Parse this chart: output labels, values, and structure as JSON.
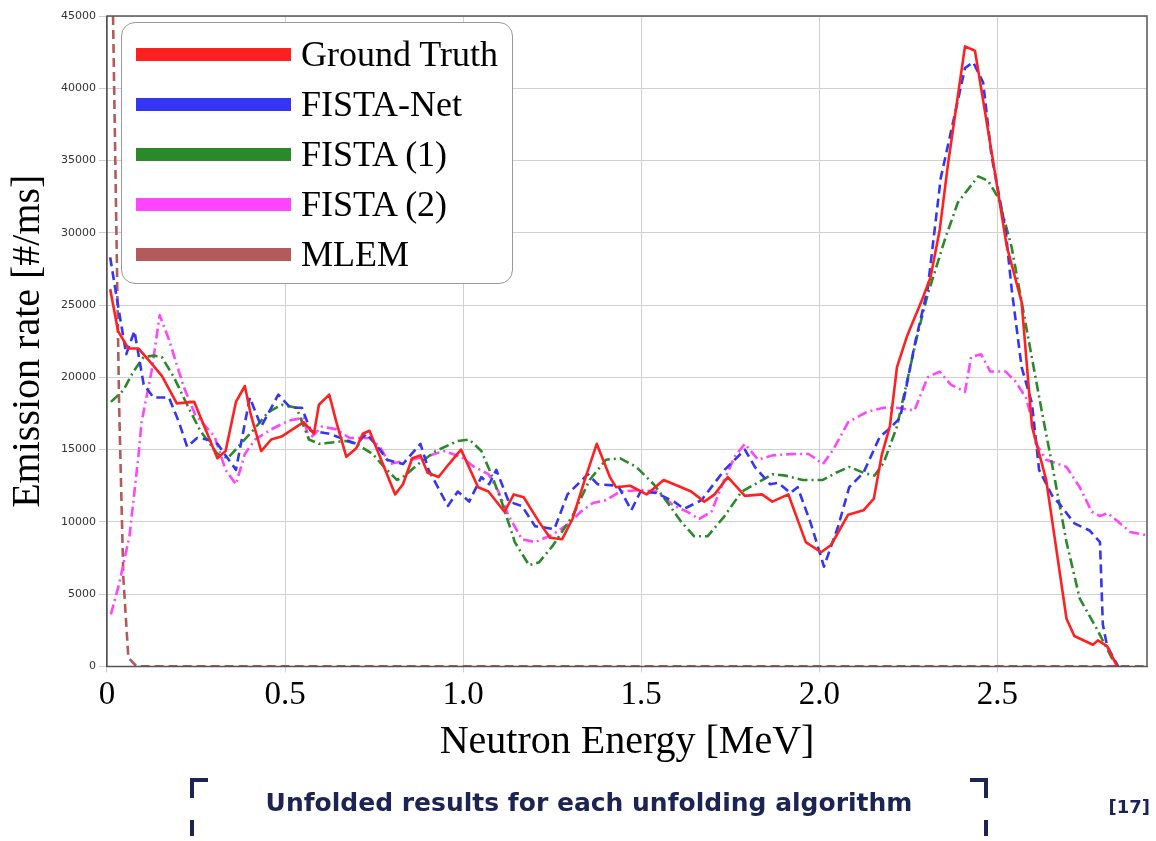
{
  "chart_data": {
    "type": "line",
    "xlabel": "Neutron Energy [MeV]",
    "ylabel": "Emission rate [#/ms]",
    "xlim": [
      0,
      2.92
    ],
    "xticks": [
      0,
      0.5,
      {
        "value": 1,
        "label": "1.0"
      },
      1.5,
      {
        "value": 2,
        "label": "2.0"
      },
      2.5
    ],
    "ylim": [
      0,
      45000
    ],
    "yticks": [
      0,
      5000,
      10000,
      15000,
      20000,
      25000,
      30000,
      35000,
      40000,
      45000
    ],
    "grid": true,
    "legend": "top left",
    "marker": "none",
    "annotations": [
      "Unfolded results for each unfolding algorithm",
      "[17]"
    ],
    "series": [
      {
        "name": "Ground Truth",
        "color": "#ff2020",
        "line_style": "solid",
        "x": [
          0.009,
          0.031,
          0.06,
          0.088,
          0.12,
          0.154,
          0.196,
          0.245,
          0.31,
          0.333,
          0.362,
          0.387,
          0.404,
          0.433,
          0.461,
          0.49,
          0.552,
          0.581,
          0.595,
          0.624,
          0.644,
          0.672,
          0.7,
          0.718,
          0.737,
          0.809,
          0.831,
          0.857,
          0.88,
          0.9,
          0.931,
          0.96,
          0.994,
          1.042,
          1.071,
          1.116,
          1.142,
          1.17,
          1.213,
          1.244,
          1.278,
          1.307,
          1.344,
          1.375,
          1.412,
          1.429,
          1.469,
          1.515,
          1.563,
          1.612,
          1.64,
          1.677,
          1.706,
          1.743,
          1.791,
          1.839,
          1.868,
          1.913,
          1.962,
          2.005,
          2.033,
          2.081,
          2.124,
          2.153,
          2.175,
          2.198,
          2.218,
          2.247,
          2.289,
          2.312,
          2.338,
          2.361,
          2.409,
          2.437,
          2.483,
          2.526,
          2.568,
          2.597,
          2.637,
          2.694,
          2.716,
          2.768,
          2.782,
          2.808,
          2.836
        ],
        "values": [
          26100,
          23200,
          22000,
          22000,
          21100,
          20100,
          18200,
          18300,
          14400,
          14900,
          18300,
          19400,
          17400,
          14900,
          15700,
          15900,
          16900,
          16100,
          18100,
          18800,
          16900,
          14500,
          15100,
          16100,
          16300,
          11900,
          12600,
          14400,
          14600,
          13400,
          13100,
          14000,
          15000,
          12400,
          12100,
          10700,
          11900,
          11700,
          10000,
          8900,
          8800,
          10200,
          13100,
          15400,
          13100,
          12400,
          12500,
          11900,
          12900,
          12400,
          12100,
          11400,
          11900,
          13100,
          11800,
          11900,
          11400,
          11900,
          8600,
          7900,
          8400,
          10500,
          10800,
          11600,
          14600,
          16600,
          20700,
          22900,
          25400,
          26900,
          30200,
          34700,
          42900,
          42600,
          35700,
          29100,
          25200,
          16600,
          12900,
          3300,
          2100,
          1500,
          1800,
          1400,
          0
        ]
      },
      {
        "name": "FISTA-Net",
        "color": "#3535f5",
        "line_style": "dashed",
        "x": [
          0.009,
          0.026,
          0.054,
          0.077,
          0.103,
          0.131,
          0.174,
          0.202,
          0.225,
          0.253,
          0.282,
          0.31,
          0.362,
          0.401,
          0.433,
          0.481,
          0.515,
          0.547,
          0.572,
          0.624,
          0.7,
          0.729,
          0.766,
          0.786,
          0.831,
          0.88,
          0.903,
          0.957,
          0.985,
          1.017,
          1.051,
          1.073,
          1.093,
          1.128,
          1.165,
          1.202,
          1.256,
          1.293,
          1.35,
          1.378,
          1.435,
          1.472,
          1.498,
          1.543,
          1.592,
          1.62,
          1.669,
          1.734,
          1.791,
          1.819,
          1.862,
          1.885,
          1.919,
          1.939,
          1.976,
          2.013,
          2.053,
          2.084,
          2.124,
          2.17,
          2.195,
          2.227,
          2.269,
          2.304,
          2.341,
          2.375,
          2.409,
          2.432,
          2.46,
          2.483,
          2.523,
          2.54,
          2.568,
          2.597,
          2.617,
          2.654,
          2.679,
          2.716,
          2.759,
          2.788,
          2.796,
          2.808,
          2.839
        ],
        "values": [
          28300,
          25700,
          21600,
          23200,
          19500,
          18600,
          18600,
          16900,
          15200,
          15800,
          15700,
          15400,
          13600,
          18600,
          16600,
          18800,
          17900,
          17900,
          16300,
          16100,
          15400,
          16100,
          15000,
          14300,
          14000,
          15400,
          13600,
          11100,
          12100,
          11400,
          13100,
          12600,
          13600,
          11400,
          11100,
          9700,
          9500,
          11900,
          13300,
          12600,
          12500,
          10800,
          12100,
          12000,
          11400,
          10900,
          11500,
          13600,
          15000,
          13800,
          12600,
          12700,
          12000,
          12400,
          9900,
          6900,
          9700,
          12400,
          13400,
          15900,
          16400,
          17200,
          22400,
          26100,
          33800,
          37600,
          41400,
          41800,
          40400,
          35400,
          30200,
          26100,
          20700,
          18200,
          13600,
          11800,
          11100,
          9900,
          9400,
          8600,
          2900,
          1400,
          0
        ]
      },
      {
        "name": "FISTA (1)",
        "color": "#2a8a2a",
        "line_style": "dashdot",
        "x": [
          0.011,
          0.046,
          0.074,
          0.103,
          0.131,
          0.154,
          0.188,
          0.225,
          0.262,
          0.31,
          0.339,
          0.376,
          0.416,
          0.453,
          0.49,
          0.532,
          0.567,
          0.595,
          0.672,
          0.7,
          0.746,
          0.774,
          0.814,
          0.831,
          0.874,
          0.923,
          0.985,
          1.017,
          1.051,
          1.079,
          1.108,
          1.145,
          1.185,
          1.213,
          1.25,
          1.307,
          1.355,
          1.401,
          1.441,
          1.486,
          1.535,
          1.572,
          1.612,
          1.649,
          1.686,
          1.734,
          1.782,
          1.819,
          1.868,
          1.905,
          1.953,
          2.01,
          2.047,
          2.084,
          2.124,
          2.155,
          2.181,
          2.218,
          2.275,
          2.304,
          2.352,
          2.389,
          2.446,
          2.474,
          2.503,
          2.54,
          2.58,
          2.625,
          2.654,
          2.694,
          2.731,
          2.779,
          2.825
        ],
        "values": [
          18300,
          19100,
          20400,
          21400,
          21500,
          21400,
          20000,
          18100,
          16300,
          14700,
          14400,
          15400,
          16500,
          17600,
          18100,
          17900,
          15700,
          15400,
          15600,
          15400,
          14700,
          13900,
          12900,
          13100,
          14000,
          14900,
          15600,
          15700,
          14900,
          13300,
          11400,
          8600,
          7000,
          7200,
          8300,
          10400,
          12900,
          14300,
          14400,
          13800,
          12600,
          11400,
          10000,
          9000,
          9000,
          10400,
          12100,
          12600,
          13300,
          13200,
          12900,
          12900,
          13400,
          13800,
          13400,
          13200,
          14100,
          16600,
          22900,
          25700,
          29500,
          32100,
          33900,
          33600,
          32400,
          29000,
          23600,
          17600,
          13900,
          8600,
          4700,
          2600,
          400
        ]
      },
      {
        "name": "FISTA (2)",
        "color": "#ff45ff",
        "line_style": "dashdot",
        "x": [
          0.011,
          0.034,
          0.063,
          0.088,
          0.097,
          0.125,
          0.148,
          0.174,
          0.216,
          0.248,
          0.302,
          0.333,
          0.362,
          0.387,
          0.416,
          0.461,
          0.51,
          0.552,
          0.567,
          0.604,
          0.644,
          0.681,
          0.737,
          0.766,
          0.794,
          0.851,
          0.894,
          0.945,
          0.994,
          1.031,
          1.071,
          1.099,
          1.128,
          1.165,
          1.202,
          1.25,
          1.298,
          1.33,
          1.364,
          1.401,
          1.441,
          1.498,
          1.543,
          1.592,
          1.629,
          1.663,
          1.697,
          1.728,
          1.762,
          1.791,
          1.828,
          1.868,
          1.925,
          1.97,
          2.01,
          2.039,
          2.081,
          2.133,
          2.181,
          2.218,
          2.267,
          2.304,
          2.338,
          2.369,
          2.409,
          2.426,
          2.454,
          2.48,
          2.523,
          2.551,
          2.58,
          2.597,
          2.608,
          2.637,
          2.694,
          2.731,
          2.765,
          2.788,
          2.81,
          2.839,
          2.873,
          2.916
        ],
        "values": [
          3600,
          5700,
          9000,
          14500,
          16900,
          20400,
          24300,
          22600,
          19300,
          17400,
          15900,
          13600,
          12600,
          14700,
          15700,
          16400,
          17000,
          17200,
          15700,
          16600,
          16400,
          15800,
          15800,
          15200,
          14000,
          14300,
          14500,
          14900,
          14500,
          13800,
          13300,
          12100,
          10400,
          8800,
          8600,
          9100,
          9900,
          10700,
          11300,
          11500,
          12100,
          12200,
          12100,
          11100,
          10700,
          10200,
          10700,
          12600,
          14500,
          15400,
          14300,
          14600,
          14700,
          14700,
          14000,
          15000,
          16900,
          17600,
          17900,
          17900,
          17700,
          20000,
          20400,
          19500,
          19000,
          21400,
          21600,
          20400,
          20400,
          19700,
          18600,
          17100,
          15400,
          14300,
          13800,
          12400,
          10700,
          10400,
          10600,
          10000,
          9300,
          9100
        ]
      },
      {
        "name": "MLEM",
        "color": "#b55a5a",
        "line_style": "dashed",
        "x": [
          0.017,
          0.034,
          0.046,
          0.06,
          0.083,
          2.916
        ],
        "values": [
          45000,
          18100,
          6100,
          600,
          0,
          0
        ]
      }
    ]
  }
}
